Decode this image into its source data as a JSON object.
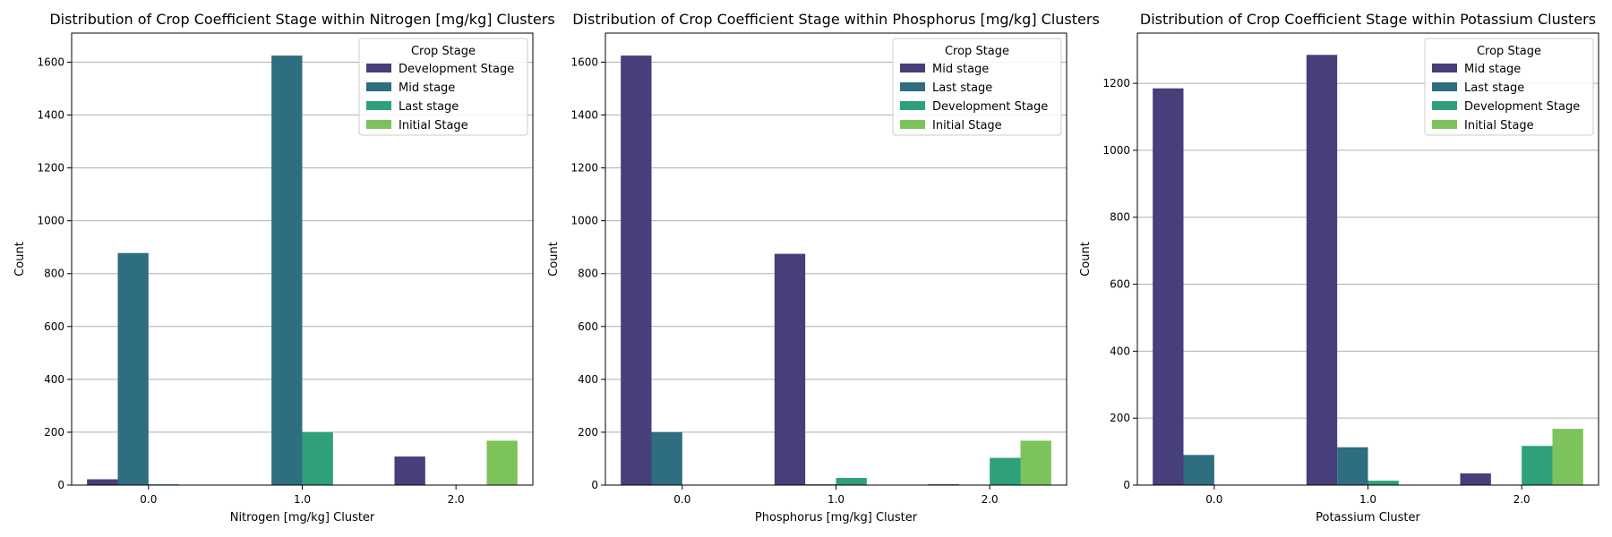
{
  "chart_data": [
    {
      "type": "bar",
      "title": "Distribution of Crop Coefficient Stage within Nitrogen [mg/kg] Clusters",
      "xlabel": "Nitrogen [mg/kg] Cluster",
      "ylabel": "Count",
      "categories": [
        "0.0",
        "1.0",
        "2.0"
      ],
      "ylim": [
        0,
        1710
      ],
      "yticks": [
        0,
        200,
        400,
        600,
        800,
        1000,
        1200,
        1400,
        1600
      ],
      "grid": "y",
      "legend": {
        "title": "Crop Stage",
        "placement": "top-right"
      },
      "series": [
        {
          "name": "Development Stage",
          "values": [
            22,
            0,
            108
          ]
        },
        {
          "name": "Mid stage",
          "values": [
            878,
            1625,
            0
          ]
        },
        {
          "name": "Last stage",
          "values": [
            3,
            200,
            0
          ]
        },
        {
          "name": "Initial Stage",
          "values": [
            0,
            0,
            168
          ]
        }
      ]
    },
    {
      "type": "bar",
      "title": "Distribution of Crop Coefficient Stage within Phosphorus [mg/kg] Clusters",
      "xlabel": "Phosphorus [mg/kg] Cluster",
      "ylabel": "Count",
      "categories": [
        "0.0",
        "1.0",
        "2.0"
      ],
      "ylim": [
        0,
        1710
      ],
      "yticks": [
        0,
        200,
        400,
        600,
        800,
        1000,
        1200,
        1400,
        1600
      ],
      "grid": "y",
      "legend": {
        "title": "Crop Stage",
        "placement": "top-right"
      },
      "series": [
        {
          "name": "Mid stage",
          "values": [
            1625,
            875,
            3
          ]
        },
        {
          "name": "Last stage",
          "values": [
            200,
            3,
            0
          ]
        },
        {
          "name": "Development Stage",
          "values": [
            0,
            27,
            103
          ]
        },
        {
          "name": "Initial Stage",
          "values": [
            0,
            0,
            168
          ]
        }
      ]
    },
    {
      "type": "bar",
      "title": "Distribution of Crop Coefficient Stage within Potassium Clusters",
      "xlabel": "Potassium Cluster",
      "ylabel": "Count",
      "categories": [
        "0.0",
        "1.0",
        "2.0"
      ],
      "ylim": [
        0,
        1350
      ],
      "yticks": [
        0,
        200,
        400,
        600,
        800,
        1000,
        1200
      ],
      "grid": "y",
      "legend": {
        "title": "Crop Stage",
        "placement": "top-right"
      },
      "series": [
        {
          "name": "Mid stage",
          "values": [
            1185,
            1285,
            35
          ]
        },
        {
          "name": "Last stage",
          "values": [
            90,
            113,
            0
          ]
        },
        {
          "name": "Development Stage",
          "values": [
            0,
            13,
            117
          ]
        },
        {
          "name": "Initial Stage",
          "values": [
            0,
            0,
            168
          ]
        }
      ]
    }
  ],
  "palette": {
    "Development Stage": "#482878",
    "Mid stage": "#2e6f80",
    "Last stage": "#25a07a",
    "Initial Stage": "#7cc35c",
    "_note_order": [
      "#463f7a",
      "#2f6d80",
      "#2da07a",
      "#7fc35f"
    ]
  }
}
